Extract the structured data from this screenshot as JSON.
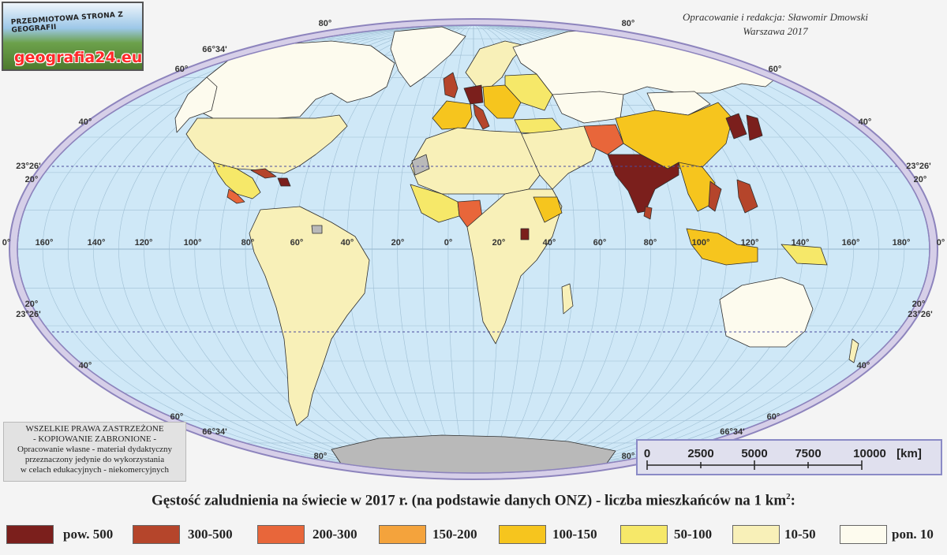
{
  "logo": {
    "tagline": "PRZEDMIOTOWA STRONA Z GEOGRAFII",
    "brand": "geografia24.eu"
  },
  "credit": {
    "line1": "Opracowanie i redakcja: Sławomir Dmowski",
    "line2": "Warszawa 2017"
  },
  "rights": {
    "line1": "WSZELKIE PRAWA ZASTRZEŻONE",
    "line2": "- KOPIOWANIE ZABRONIONE -",
    "line3": "Opracowanie własne - materiał dydaktyczny",
    "line4": "przeznaczony jedynie do wykorzystania",
    "line5": "w celach edukacyjnych - niekomercyjnych"
  },
  "scale": {
    "ticks": [
      "0",
      "2500",
      "5000",
      "7500",
      "10000"
    ],
    "unit": "[km]"
  },
  "title": {
    "text": "Gęstość zaludnienia na świecie w 2017 r. (na podstawie danych ONZ) - liczba mieszkańców na 1 km",
    "sup": "2",
    "suffix": ":"
  },
  "legend": [
    {
      "label": "pow. 500",
      "color": "#7b1f1c"
    },
    {
      "label": "300-500",
      "color": "#b5452b"
    },
    {
      "label": "200-300",
      "color": "#e8663a"
    },
    {
      "label": "150-200",
      "color": "#f4a33c"
    },
    {
      "label": "100-150",
      "color": "#f6c51e"
    },
    {
      "label": "50-100",
      "color": "#f6e869"
    },
    {
      "label": "10-50",
      "color": "#f8f0b8"
    },
    {
      "label": "pon. 10",
      "color": "#fdfbee"
    }
  ],
  "colors": {
    "ocean": "#cfe8f7",
    "graticule": "#9fbfd4",
    "frame": "#d6cfe8",
    "frame_edge": "#8d84bd",
    "nodata": "#b9b9b9",
    "border": "#2e2e2e"
  },
  "graticule_labels": {
    "left": [
      {
        "text": "66°34'"
      },
      {
        "text": "60°"
      },
      {
        "text": "40°"
      },
      {
        "text": "23°26'"
      },
      {
        "text": "20°"
      },
      {
        "text": "0°"
      },
      {
        "text": "20°"
      },
      {
        "text": "23°26'"
      },
      {
        "text": "40°"
      },
      {
        "text": "60°"
      },
      {
        "text": "66°34'"
      },
      {
        "text": "80°"
      }
    ],
    "right": [
      {
        "text": "60°"
      },
      {
        "text": "40°"
      },
      {
        "text": "23°26'"
      },
      {
        "text": "20°"
      },
      {
        "text": "0°"
      },
      {
        "text": "20°"
      },
      {
        "text": "23°26'"
      },
      {
        "text": "40°"
      },
      {
        "text": "60°"
      },
      {
        "text": "66°34'"
      },
      {
        "text": "80°"
      }
    ],
    "top": [
      {
        "text": "80°"
      },
      {
        "text": "80°"
      }
    ],
    "equator": [
      "160°",
      "140°",
      "120°",
      "100°",
      "80°",
      "60°",
      "40°",
      "20°",
      "0°",
      "20°",
      "40°",
      "60°",
      "80°",
      "100°",
      "120°",
      "140°",
      "160°",
      "180°"
    ]
  }
}
